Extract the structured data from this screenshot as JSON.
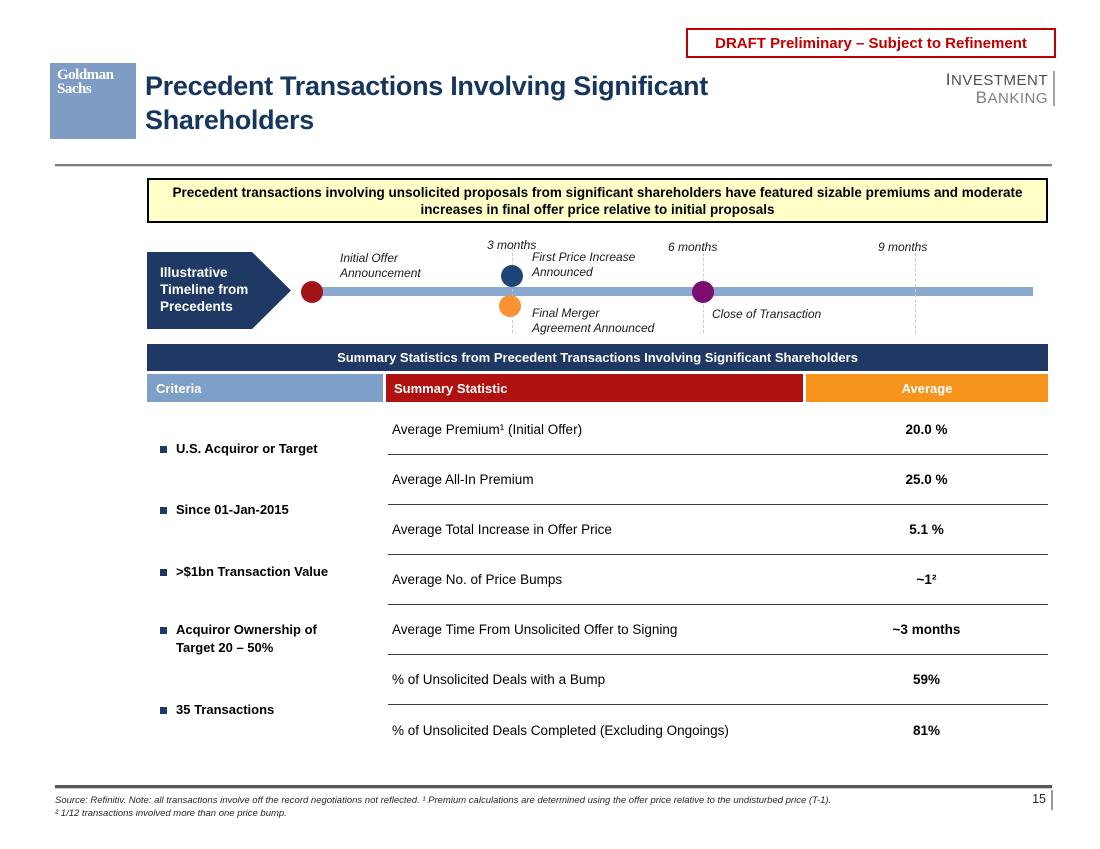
{
  "header": {
    "draft_notice": "DRAFT Preliminary – Subject to Refinement",
    "logo": {
      "line1": "Goldman",
      "line2": "Sachs"
    },
    "title_line1": "Precedent Transactions Involving Significant",
    "title_line2": "Shareholders",
    "division_line1": "INVESTMENT",
    "division_line2": "BANKING"
  },
  "banner": {
    "text": "Precedent transactions involving unsolicited proposals from significant shareholders have featured sizable premiums and moderate increases in final offer price relative to initial proposals"
  },
  "timeline": {
    "chevron_label": "Illustrative Timeline from Precedents",
    "ticks": [
      "3 months",
      "6 months",
      "9 months"
    ],
    "events": [
      {
        "label": "Initial Offer\nAnnouncement",
        "color": "#A31216"
      },
      {
        "label": "First Price Increase\nAnnounced",
        "color": "#1F4479"
      },
      {
        "label": "Final Merger\nAgreement Announced",
        "color": "#F79333"
      },
      {
        "label": "Close of Transaction",
        "color": "#7B0E6F"
      }
    ]
  },
  "table": {
    "title": "Summary Statistics from Precedent Transactions Involving Significant Shareholders",
    "columns": {
      "criteria": "Criteria",
      "statistic": "Summary Statistic",
      "average": "Average"
    },
    "criteria_items": [
      "U.S. Acquiror or Target",
      "Since 01-Jan-2015",
      ">$1bn Transaction Value",
      "Acquiror Ownership of\nTarget 20 – 50%",
      "35 Transactions"
    ],
    "rows": [
      {
        "statistic": "Average Premium¹ (Initial Offer)",
        "average": "20.0 %"
      },
      {
        "statistic": "Average All-In Premium",
        "average": "25.0 %"
      },
      {
        "statistic": "Average Total Increase in Offer Price",
        "average": "5.1 %"
      },
      {
        "statistic": "Average No. of Price Bumps",
        "average": "~1²"
      },
      {
        "statistic": "Average Time From Unsolicited Offer to Signing",
        "average": "~3 months"
      },
      {
        "statistic": "% of Unsolicited Deals with a Bump",
        "average": "59%"
      },
      {
        "statistic": "% of Unsolicited Deals Completed (Excluding Ongoings)",
        "average": "81%"
      }
    ]
  },
  "footer": {
    "note_line1": "Source: Refinitiv. Note: all transactions involve off the record negotiations not reflected. ¹ Premium calculations are determined using the offer price relative to the undisturbed price (T-1).",
    "note_line2": "² 1/12 transactions involved more than one price bump.",
    "page_number": "15"
  },
  "colors": {
    "navy": "#1F3864",
    "title_navy": "#17365D",
    "steel_blue_header": "#7E9FC7",
    "timeline_bar": "#8AAAD0",
    "draft_red": "#C00000",
    "statistic_header_red": "#B01111",
    "average_header_orange": "#F7941E",
    "banner_yellow": "#FFFFC7",
    "dot_red": "#A31216",
    "dot_navy": "#1F4479",
    "dot_orange": "#F79333",
    "dot_purple": "#7B0E6F"
  }
}
